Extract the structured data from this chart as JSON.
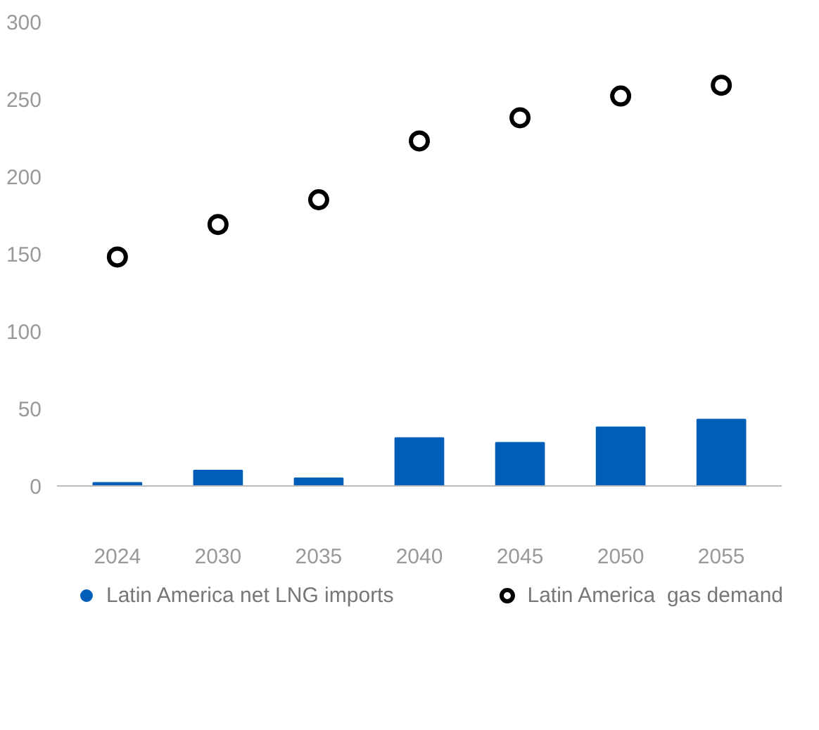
{
  "chart_data": {
    "type": "bar",
    "categories": [
      "2024",
      "2030",
      "2035",
      "2040",
      "2045",
      "2050",
      "2055"
    ],
    "series": [
      {
        "name": "Latin America net LNG imports",
        "color": "#005eb8",
        "values": [
          2,
          10,
          5,
          31,
          28,
          38,
          43
        ]
      },
      {
        "name": "Latin America  gas demand",
        "type": "scatter",
        "color": "#000000",
        "marker": "circle",
        "values": [
          148,
          169,
          185,
          223,
          238,
          252,
          259
        ]
      }
    ],
    "ylim": [
      0,
      300
    ],
    "yticks": [
      0,
      50,
      100,
      150,
      200,
      250,
      300
    ],
    "grid": false,
    "legend": "bottom"
  }
}
